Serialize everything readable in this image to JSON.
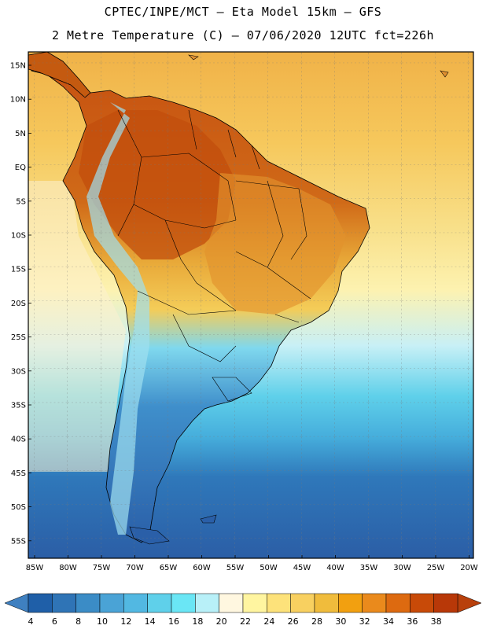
{
  "header": {
    "line1": "CPTEC/INPE/MCT –  Eta Model 15km – GFS",
    "line2": "2 Metre Temperature (C) – 07/06/2020 12UTC fct=226h"
  },
  "map": {
    "lat_labels": [
      "15N",
      "10N",
      "5N",
      "EQ",
      "5S",
      "10S",
      "15S",
      "20S",
      "25S",
      "30S",
      "35S",
      "40S",
      "45S",
      "50S",
      "55S"
    ],
    "lon_labels": [
      "85W",
      "80W",
      "75W",
      "70W",
      "65W",
      "60W",
      "55W",
      "50W",
      "45W",
      "40W",
      "35W",
      "30W",
      "25W",
      "20W"
    ]
  },
  "colorbar": {
    "labels": [
      "4",
      "6",
      "8",
      "10",
      "12",
      "14",
      "16",
      "18",
      "20",
      "22",
      "24",
      "26",
      "28",
      "30",
      "32",
      "34",
      "36",
      "38"
    ],
    "colors": [
      "#1f5fa8",
      "#2f74b6",
      "#3b8cc6",
      "#4aa3d6",
      "#52b8e2",
      "#5fd0ea",
      "#6ae6f5",
      "#b8f0f8",
      "#fff7e0",
      "#fff5a0",
      "#fde27a",
      "#f8d060",
      "#f0bc3c",
      "#f2a010",
      "#ea8a1c",
      "#dd6a10",
      "#c84a08",
      "#b83808"
    ],
    "low_color": "#3f80c0",
    "high_color": "#b8400c"
  },
  "colors": {
    "ocean_cold": "#2b64aa",
    "ocean_mid": "#52c4e4",
    "ocean_warm": "#f4c870",
    "land_hot": "#c45a10",
    "land_warm": "#e0a040",
    "andes": "#9fe0f0"
  }
}
